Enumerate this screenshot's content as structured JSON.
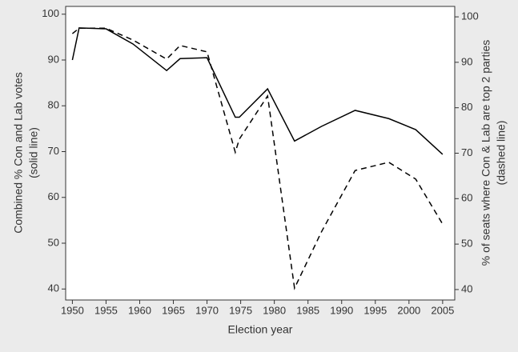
{
  "chart_data": {
    "type": "line",
    "xlabel": "Election year",
    "ylabel": [
      "Combined % Con and Lab votes",
      "(solid line)"
    ],
    "y2label": [
      "% of seats where Con & Lab are top 2 parties",
      "(dashed line)"
    ],
    "x": [
      1950,
      1951,
      1955,
      1959,
      1964,
      1966,
      1970,
      1974.2,
      1974.8,
      1979,
      1983,
      1987,
      1992,
      1997,
      2001,
      2005
    ],
    "series": [
      {
        "color": "#000000",
        "dash": false,
        "values": [
          90,
          97,
          96.8,
          93.5,
          87.7,
          90.3,
          90.5,
          77.5,
          77.5,
          83.7,
          72.3,
          75.5,
          79,
          77.2,
          74.8,
          69.4
        ]
      },
      {
        "color": "#000000",
        "dash": true,
        "axis": "y2",
        "values": [
          96.3,
          97.5,
          97.5,
          94.9,
          90.7,
          93.7,
          92.3,
          70.2,
          73.1,
          82.6,
          40.3,
          52.7,
          66.2,
          68,
          64.3,
          54.4
        ]
      }
    ],
    "xlim": [
      1949,
      2006.8
    ],
    "xticks": [
      1950,
      1955,
      1960,
      1965,
      1970,
      1975,
      1980,
      1985,
      1990,
      1995,
      2000,
      2005
    ],
    "ylim": [
      37.6,
      101.7
    ],
    "yticks": [
      40,
      50,
      60,
      70,
      80,
      90,
      100
    ],
    "y2lim": [
      37.7,
      102.3
    ],
    "y2ticks": [
      40,
      50,
      60,
      70,
      80,
      90,
      100
    ],
    "grid": false
  }
}
